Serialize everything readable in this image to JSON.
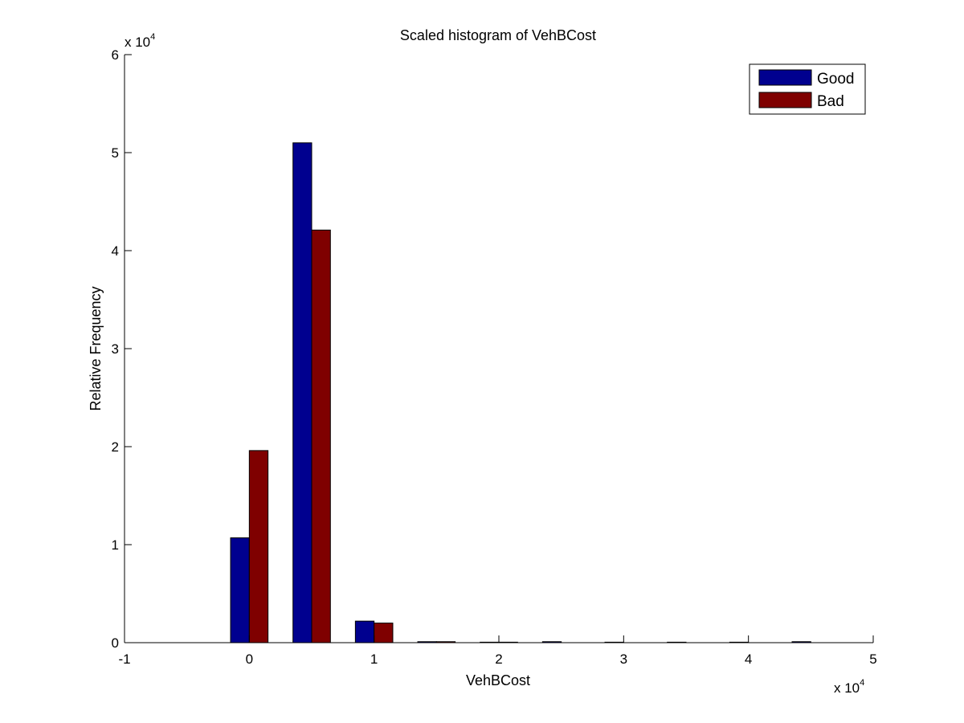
{
  "chart_data": {
    "type": "bar",
    "title": "Scaled histogram of VehBCost",
    "xlabel": "VehBCost",
    "ylabel": "Relative Frequency",
    "x_multiplier": {
      "base": "x 10",
      "exp": "4"
    },
    "y_multiplier": {
      "base": "x 10",
      "exp": "4"
    },
    "xlim": [
      -1,
      5
    ],
    "ylim": [
      0,
      6
    ],
    "xticks": [
      -1,
      0,
      1,
      2,
      3,
      4,
      5
    ],
    "yticks": [
      0,
      1,
      2,
      3,
      4,
      5,
      6
    ],
    "xtick_labels": [
      "-1",
      "0",
      "1",
      "2",
      "3",
      "4",
      "5"
    ],
    "ytick_labels": [
      "0",
      "1",
      "2",
      "3",
      "4",
      "5",
      "6"
    ],
    "bin_centers": [
      0,
      0.5,
      1,
      1.5,
      2,
      2.5,
      3,
      3.5,
      4,
      4.5
    ],
    "bar_width": 0.15,
    "legend_position": "top-right",
    "grid": false,
    "series": [
      {
        "name": "Good",
        "color": "#00008f",
        "values": [
          1.07,
          5.1,
          0.22,
          0.01,
          0.005,
          0.01,
          0.005,
          0.005,
          0.005,
          0.01
        ]
      },
      {
        "name": "Bad",
        "color": "#7f0000",
        "values": [
          1.96,
          4.21,
          0.2,
          0.01,
          0.005,
          0.0,
          0.0,
          0.0,
          0.0,
          0.0
        ]
      }
    ]
  }
}
